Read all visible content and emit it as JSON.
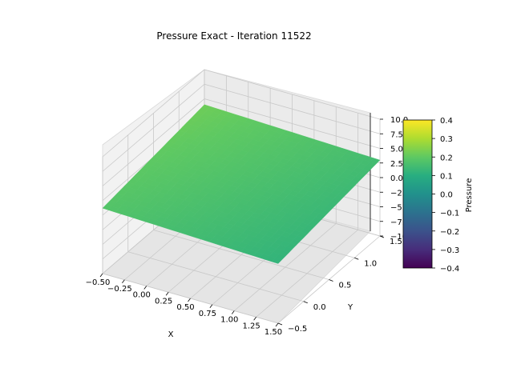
{
  "chart_data": {
    "type": "surface3d",
    "title": "Pressure Exact - Iteration 11522",
    "xlabel": "X",
    "ylabel": "Y",
    "zlabel": "",
    "xlim": [
      -0.5,
      1.5
    ],
    "ylim": [
      -0.5,
      1.5
    ],
    "zlim": [
      -10,
      10
    ],
    "xticks": [
      "−0.50",
      "−0.25",
      "0.00",
      "0.25",
      "0.50",
      "0.75",
      "1.00",
      "1.25",
      "1.50"
    ],
    "yticks": [
      "−0.5",
      "0.0",
      "0.5",
      "1.0",
      "1.5"
    ],
    "zticks": [
      "−10.0",
      "−7.5",
      "−5.0",
      "−2.5",
      "0.0",
      "2.5",
      "5.0",
      "7.5",
      "10.0"
    ],
    "surface": {
      "x_range": [
        -0.5,
        1.5
      ],
      "y_range": [
        -0.5,
        1.5
      ],
      "pressure_corners": {
        "x0y0": 0.18,
        "x1y0": 0.12,
        "x0y1": 0.22,
        "x1y1": 0.15
      },
      "colormap": "viridis"
    },
    "colorbar": {
      "label": "Pressure",
      "range": [
        -0.4,
        0.4
      ],
      "ticks": [
        "−0.4",
        "−0.3",
        "−0.2",
        "−0.1",
        "0.0",
        "0.1",
        "0.2",
        "0.3",
        "0.4"
      ]
    },
    "grid": true
  }
}
